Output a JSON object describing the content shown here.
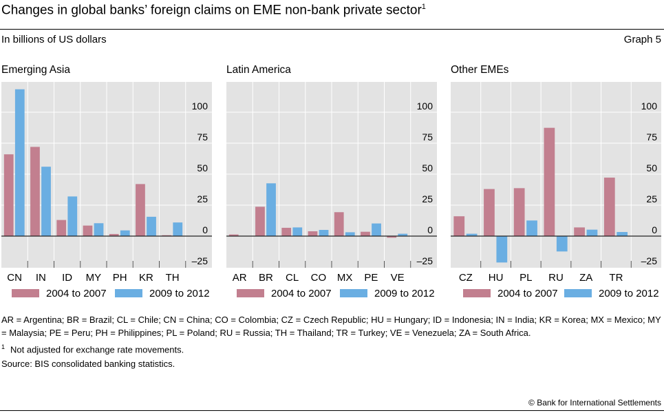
{
  "title": "Changes in global banks’ foreign claims on EME non-bank private sector",
  "title_footnote_marker": "1",
  "subtitle": "In billions of US dollars",
  "graph_number": "Graph 5",
  "colors": {
    "series1": "#c27f8f",
    "series2": "#6aaee2",
    "plot_bg": "#e3e3e3"
  },
  "chart_data": [
    {
      "type": "bar",
      "title": "Emerging Asia",
      "categories": [
        "CN",
        "IN",
        "ID",
        "MY",
        "PH",
        "KR",
        "TH"
      ],
      "series": [
        {
          "name": "2004 to 2007",
          "values": [
            66,
            72,
            13,
            8.5,
            1.7,
            42,
            0.7
          ]
        },
        {
          "name": "2009 to 2012",
          "values": [
            118.5,
            56,
            32,
            10.4,
            4.6,
            15.6,
            11
          ]
        }
      ],
      "yticks": [
        "100",
        "75",
        "50",
        "25",
        "0",
        "–25"
      ],
      "ytick_values": [
        100,
        75,
        50,
        25,
        0,
        -25
      ],
      "ylim": [
        -25,
        125
      ],
      "grid": true
    },
    {
      "type": "bar",
      "title": "Latin America",
      "categories": [
        "AR",
        "BR",
        "CL",
        "CO",
        "MX",
        "PE",
        "VE"
      ],
      "series": [
        {
          "name": "2004 to 2007",
          "values": [
            1.3,
            23.7,
            6.7,
            3.9,
            19.3,
            3.5,
            -1.3
          ]
        },
        {
          "name": "2009 to 2012",
          "values": [
            0,
            42.6,
            7,
            5,
            3.1,
            10.2,
            1.9
          ]
        }
      ],
      "yticks": [
        "100",
        "75",
        "50",
        "25",
        "0",
        "–25"
      ],
      "ytick_values": [
        100,
        75,
        50,
        25,
        0,
        -25
      ],
      "ylim": [
        -25,
        125
      ],
      "grid": true
    },
    {
      "type": "bar",
      "title": "Other EMEs",
      "categories": [
        "CZ",
        "HU",
        "PL",
        "RU",
        "ZA",
        "TR"
      ],
      "series": [
        {
          "name": "2004 to 2007",
          "values": [
            16,
            38,
            38.7,
            87.4,
            7,
            47.2
          ]
        },
        {
          "name": "2009 to 2012",
          "values": [
            1.9,
            -21.3,
            12.6,
            -12.4,
            5.2,
            3.3
          ]
        }
      ],
      "yticks": [
        "100",
        "75",
        "50",
        "25",
        "0",
        "–25"
      ],
      "ytick_values": [
        100,
        75,
        50,
        25,
        0,
        -25
      ],
      "ylim": [
        -25,
        125
      ],
      "grid": true
    }
  ],
  "notes": {
    "abbreviations": "AR = Argentina; BR = Brazil; CL = Chile; CN = China; CO = Colombia; CZ = Czech Republic; HU = Hungary; ID = Indonesia; IN = India; KR = Korea; MX = Mexico; MY = Malaysia; PE = Peru; PH = Philippines; PL = Poland; RU = Russia; TH = Thailand; TR = Turkey; VE = Venezuela; ZA = South Africa.",
    "footnote_marker": "1",
    "footnote": "Not adjusted for exchange rate movements.",
    "source": "Source: BIS consolidated banking statistics."
  },
  "copyright": "© Bank for International Settlements"
}
